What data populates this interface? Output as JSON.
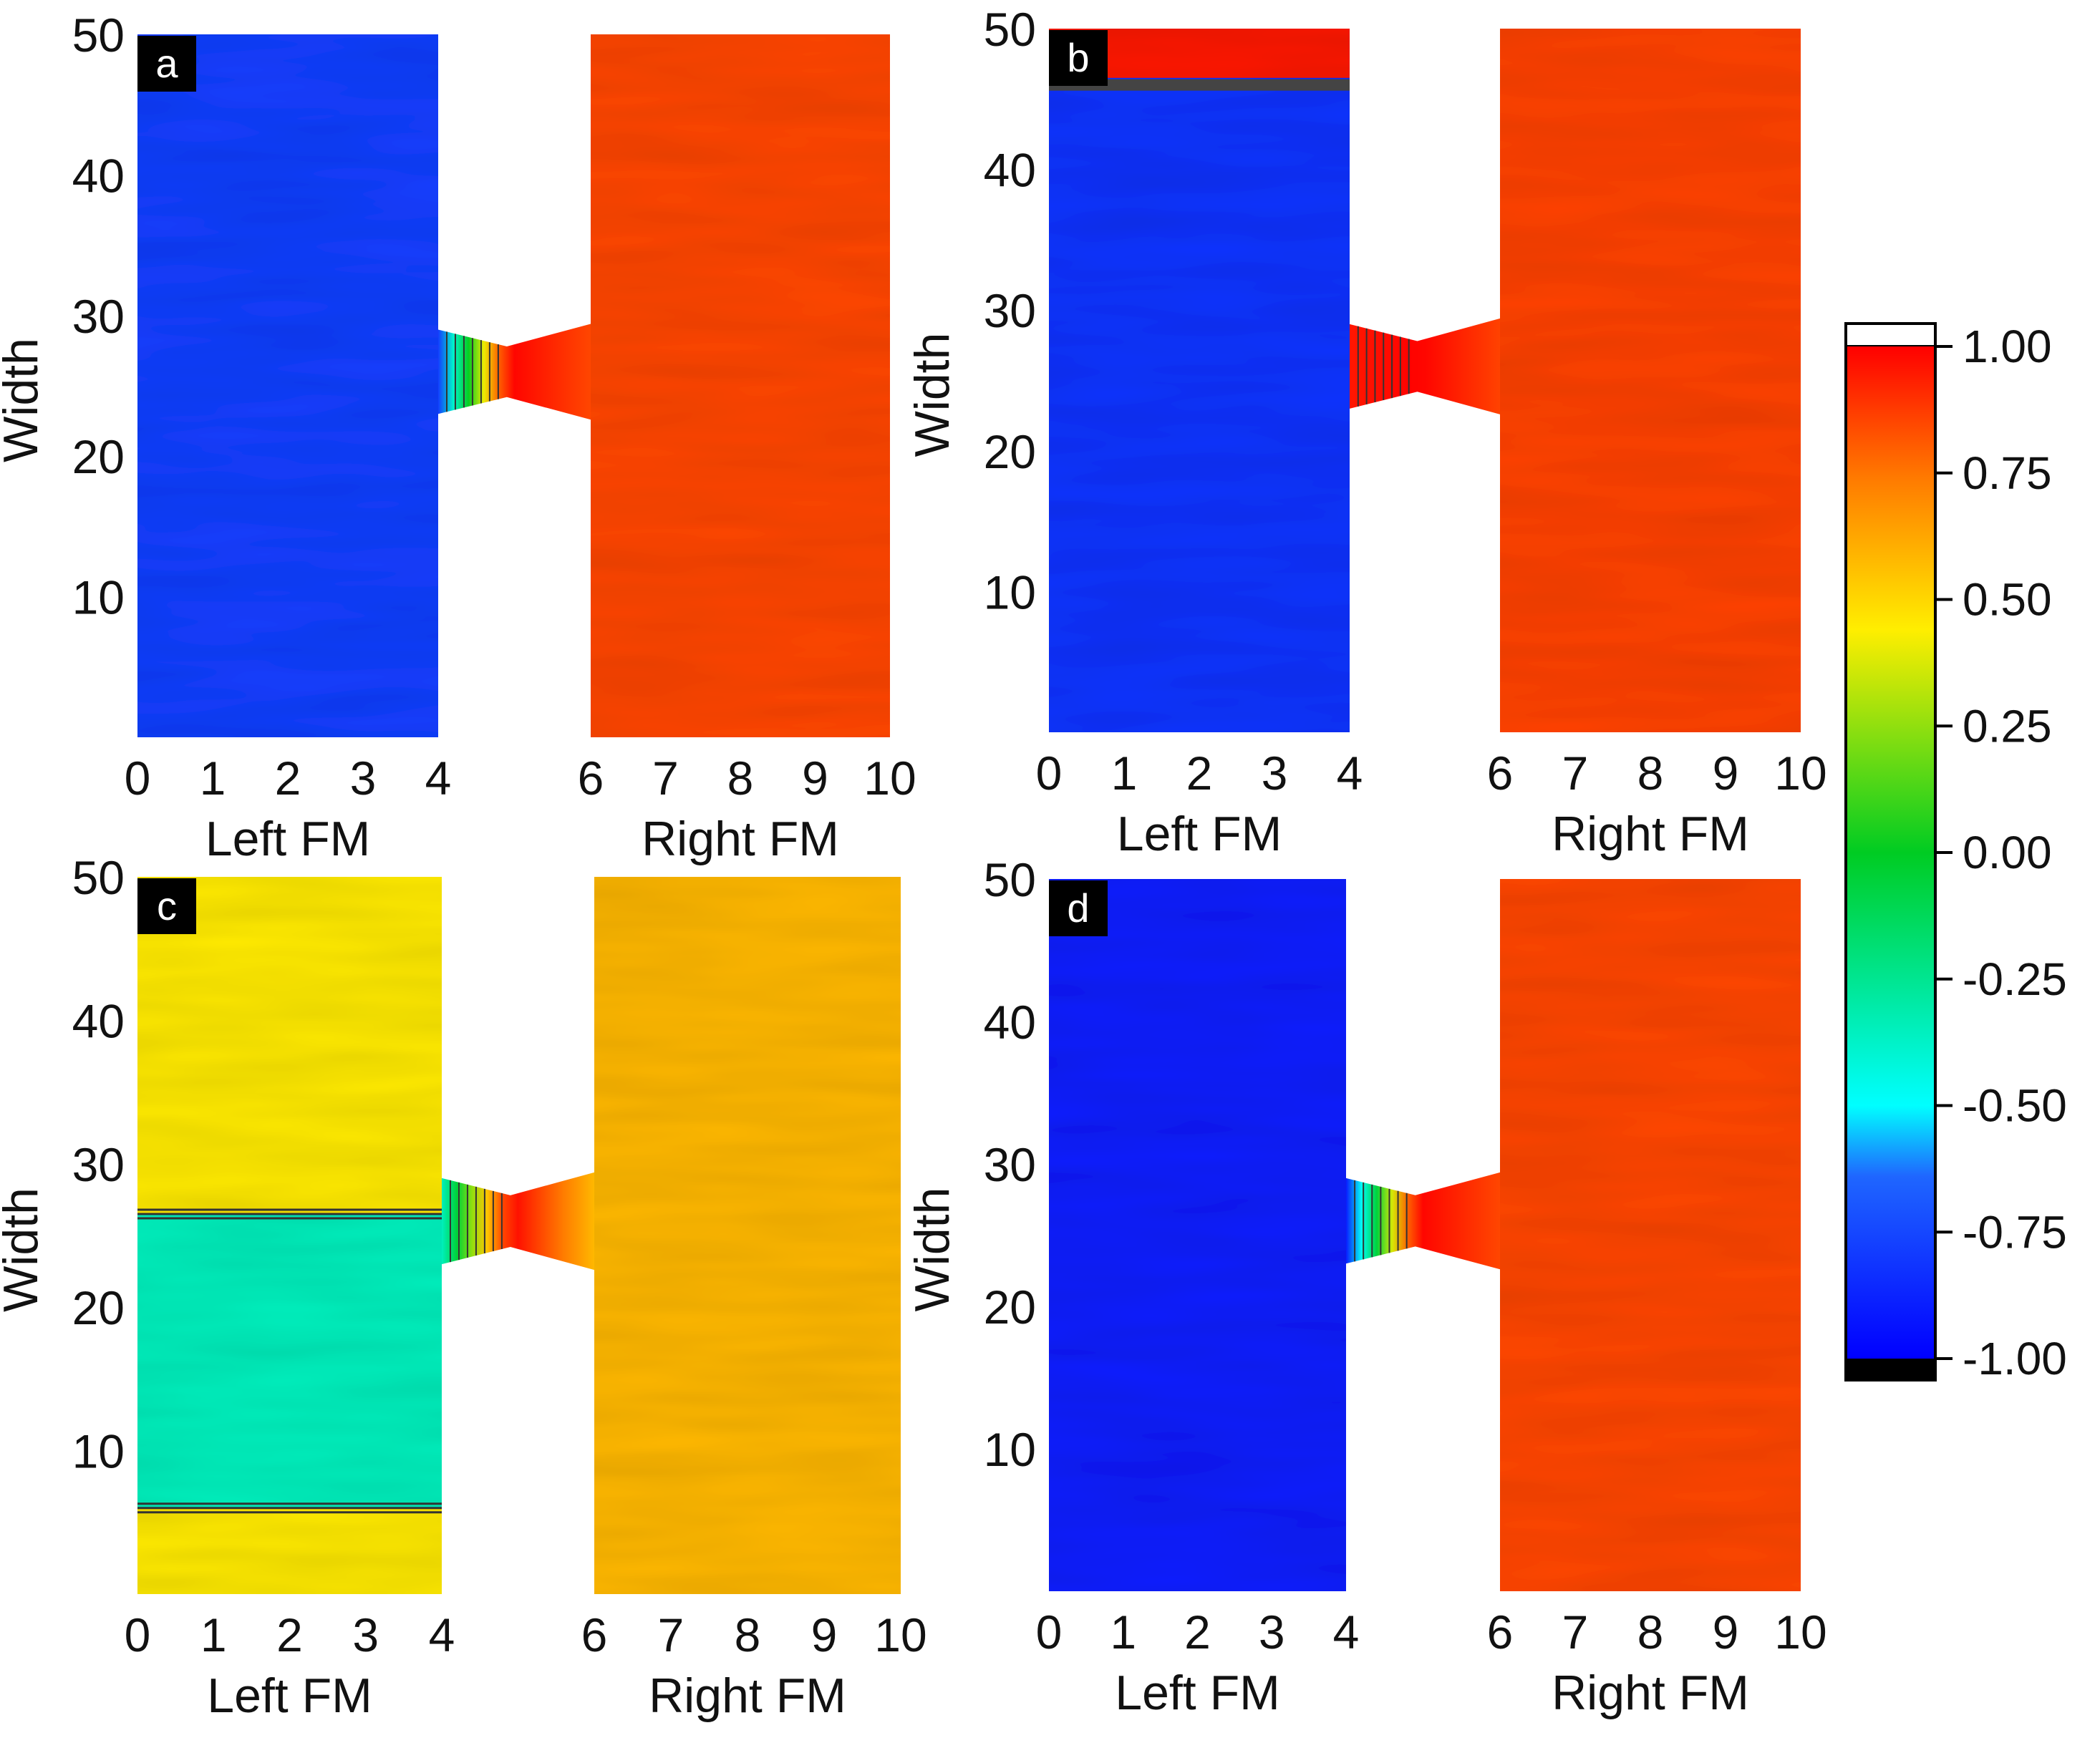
{
  "chart_data": {
    "type": "heatmap",
    "colorbar": {
      "ticks": [
        1.0,
        0.75,
        0.5,
        0.25,
        0.0,
        -0.25,
        -0.5,
        -0.75,
        -1.0
      ],
      "tick_labels": [
        "1.00",
        "0.75",
        "0.50",
        "0.25",
        "0.00",
        "-0.25",
        "-0.50",
        "-0.75",
        "-1.00"
      ],
      "range": [
        -1.0,
        1.0
      ],
      "over_color": "#ffffff",
      "under_color": "#000000"
    },
    "shared": {
      "ylabel": "Width",
      "ylim": [
        0,
        50
      ],
      "y_ticks": [
        10,
        20,
        30,
        40,
        50
      ],
      "left_xlabel": "Left FM",
      "right_xlabel": "Right FM",
      "left_ticks": [
        0,
        1,
        2,
        3,
        4
      ],
      "right_ticks": [
        6,
        7,
        8,
        9,
        10
      ],
      "left_range": [
        0,
        4
      ],
      "right_range": [
        6,
        10
      ],
      "bridge_width_range": [
        23,
        29
      ]
    },
    "panels": [
      {
        "label": "a",
        "left_value": -0.78,
        "right_value": 0.85,
        "band": null
      },
      {
        "label": "b",
        "left_value": -0.82,
        "right_value": 0.86,
        "band": {
          "ymin": 46.5,
          "ymax": 50,
          "value": 0.95,
          "line_at": 46
        }
      },
      {
        "label": "c",
        "left_value": 0.45,
        "right_value": 0.58,
        "band": {
          "ymin": 6,
          "ymax": 26.5,
          "value": -0.35
        }
      },
      {
        "label": "d",
        "left_value": -0.9,
        "right_value": 0.85,
        "band": null
      }
    ]
  },
  "colors": {
    "axis_text": "#111111",
    "label_box": "#000000",
    "contour": "#333333"
  }
}
